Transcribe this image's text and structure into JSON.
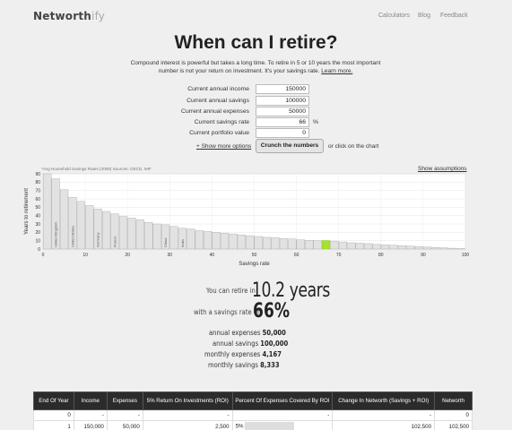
{
  "header": {
    "logo_main": "Networth",
    "logo_suffix": "ify",
    "nav": [
      "Calculators",
      "Blog",
      "Feedback"
    ]
  },
  "title": "When can I retire?",
  "intro": {
    "text": "Compound interest is powerful but takes a long time. To retire in 5 or 10 years the most important number is not your return on investment. It's your savings rate.",
    "link": "Learn more."
  },
  "form": {
    "fields": [
      {
        "label": "Current annual income",
        "value": "150000",
        "unit": ""
      },
      {
        "label": "Current annual savings",
        "value": "100000",
        "unit": ""
      },
      {
        "label": "Current annual expenses",
        "value": "50000",
        "unit": ""
      },
      {
        "label": "Current savings rate",
        "value": "66",
        "unit": "%"
      },
      {
        "label": "Current portfolio value",
        "value": "0",
        "unit": ""
      }
    ],
    "more_options": "+ Show more options",
    "crunch_label": "Crunch the numbers",
    "click_chart": "or click on the chart"
  },
  "chart_note": "*Avg Household Savings Rates (2008) Sources: OECD, IMF",
  "show_assumptions": "Show assumptions",
  "chart_data": {
    "type": "bar",
    "xlabel": "Savings rate",
    "ylabel": "Years to retirement",
    "xlim": [
      0,
      100
    ],
    "ylim": [
      0,
      90
    ],
    "x_ticks": [
      0,
      10,
      20,
      30,
      40,
      50,
      60,
      70,
      80,
      90,
      100
    ],
    "y_ticks": [
      0,
      10,
      20,
      30,
      40,
      50,
      60,
      70,
      80,
      90
    ],
    "x": [
      0,
      2,
      4,
      6,
      8,
      10,
      12,
      14,
      16,
      18,
      20,
      22,
      24,
      26,
      28,
      30,
      32,
      34,
      36,
      38,
      40,
      42,
      44,
      46,
      48,
      50,
      52,
      54,
      56,
      58,
      60,
      62,
      64,
      66,
      68,
      70,
      72,
      74,
      76,
      78,
      80,
      82,
      84,
      86,
      88,
      90,
      92,
      94,
      96,
      98
    ],
    "values": [
      90,
      84,
      71,
      62,
      57,
      52,
      48,
      45,
      42,
      39,
      37,
      35,
      32,
      30,
      29,
      27,
      25,
      24,
      22,
      21,
      20,
      19,
      18,
      17,
      16,
      15,
      14,
      13.5,
      12.5,
      12,
      11,
      10.5,
      10.2,
      10.2,
      9.5,
      8.5,
      7.5,
      7,
      6.5,
      5.5,
      5,
      4.5,
      4,
      3.5,
      3,
      2.5,
      2,
      1.5,
      1,
      0.5
    ],
    "highlight_x": 66,
    "highlight_color": "#a6e22e",
    "bar_color": "#e2e2e2",
    "annotations": [
      {
        "x": 2,
        "label": "United Kingdom"
      },
      {
        "x": 6,
        "label": "United States"
      },
      {
        "x": 12,
        "label": "Germany"
      },
      {
        "x": 16,
        "label": "France"
      },
      {
        "x": 28,
        "label": "China"
      },
      {
        "x": 32,
        "label": "India"
      }
    ]
  },
  "result": {
    "line1": "You can retire in",
    "years": "10.2 years",
    "line2": "with a savings rate of",
    "rate": "66%",
    "stats": [
      {
        "label": "annual expenses",
        "value": "50,000"
      },
      {
        "label": "annual savings",
        "value": "100,000"
      },
      {
        "label": "monthly expenses",
        "value": "4,167"
      },
      {
        "label": "monthly savings",
        "value": "8,333"
      }
    ]
  },
  "table": {
    "headers": [
      "End Of Year",
      "Income",
      "Expenses",
      "5% Return On Investments (ROI)",
      "Percent Of Expenses Covered By ROI",
      "Change In Networth (Savings + ROI)",
      "Networth"
    ],
    "rows": [
      [
        "0",
        "-",
        "-",
        "-",
        "-",
        "-",
        "0"
      ],
      [
        "1",
        "150,000",
        "50,000",
        "2,500",
        "5%",
        "102,500",
        "102,500"
      ]
    ],
    "cover_fraction": [
      0,
      0.05
    ]
  }
}
